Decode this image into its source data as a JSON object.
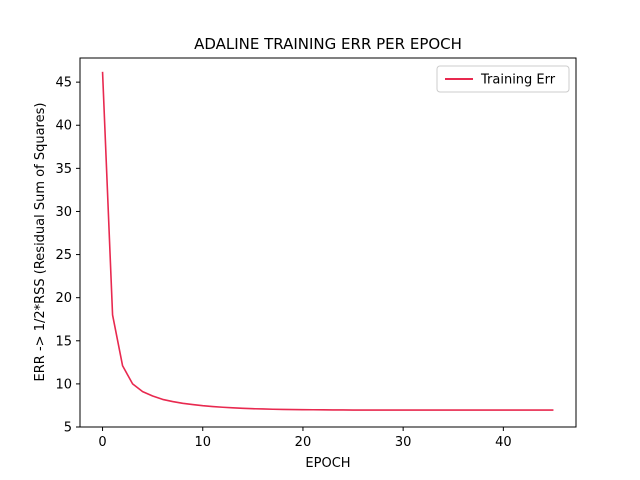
{
  "chart_data": {
    "type": "line",
    "title": "ADALINE TRAINING ERR PER EPOCH",
    "xlabel": "EPOCH",
    "ylabel": "ERR -> 1/2*RSS (Residual Sum of Squares)",
    "xlim": [
      -2.25,
      47.25
    ],
    "ylim": [
      5,
      47.8
    ],
    "xticks": [
      0,
      10,
      20,
      30,
      40
    ],
    "yticks": [
      5,
      10,
      15,
      20,
      25,
      30,
      35,
      40,
      45
    ],
    "grid": false,
    "legend_position": "top-right",
    "series": [
      {
        "name": "Training Err",
        "color": "#e8294f",
        "x": [
          0,
          1,
          2,
          3,
          4,
          5,
          6,
          7,
          8,
          9,
          10,
          11,
          12,
          13,
          14,
          15,
          16,
          17,
          18,
          19,
          20,
          21,
          22,
          23,
          24,
          25,
          26,
          27,
          28,
          29,
          30,
          31,
          32,
          33,
          34,
          35,
          36,
          37,
          38,
          39,
          40,
          41,
          42,
          43,
          44,
          45
        ],
        "values": [
          46.2,
          18.0,
          12.1,
          10.0,
          9.1,
          8.6,
          8.2,
          7.95,
          7.75,
          7.6,
          7.47,
          7.37,
          7.29,
          7.22,
          7.17,
          7.12,
          7.09,
          7.06,
          7.04,
          7.02,
          7.01,
          7.0,
          6.99,
          6.98,
          6.98,
          6.97,
          6.97,
          6.97,
          6.96,
          6.96,
          6.96,
          6.96,
          6.96,
          6.96,
          6.96,
          6.96,
          6.96,
          6.96,
          6.96,
          6.96,
          6.96,
          6.96,
          6.96,
          6.96,
          6.96,
          6.96
        ]
      }
    ]
  }
}
